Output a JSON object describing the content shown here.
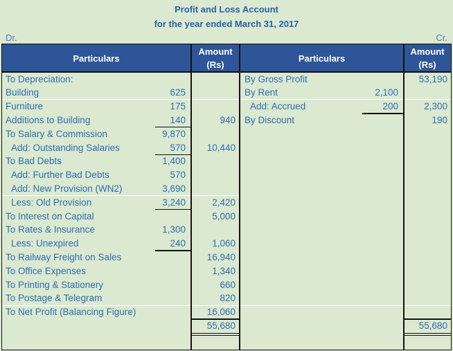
{
  "title": {
    "line1": "Profit and Loss Account",
    "line2": "for the year ended March 31, 2017"
  },
  "side_labels": {
    "debit": "Dr.",
    "credit": "Cr."
  },
  "header": {
    "dr_particulars": "Particulars",
    "dr_amount_line1": "Amount",
    "dr_amount_line2": "(Rs)",
    "cr_particulars": "Particulars",
    "cr_amount_line1": "Amount",
    "cr_amount_line2": "(Rs)"
  },
  "debit": [
    {
      "label": "To Depreciation:",
      "sub": "",
      "amount": "",
      "indent": 0
    },
    {
      "label": "Building",
      "sub": "625",
      "amount": "",
      "indent": 0
    },
    {
      "label": "Furniture",
      "sub": "175",
      "amount": "",
      "indent": 0
    },
    {
      "label": "Additions to Building",
      "sub": "140",
      "amount": "940",
      "indent": 0
    },
    {
      "label": "To Salary & Commission",
      "sub": "9,870",
      "amount": "",
      "indent": 0
    },
    {
      "label": "Add: Outstanding Salaries",
      "sub": "570",
      "amount": "10,440",
      "indent": 1
    },
    {
      "label": "To Bad Debts",
      "sub": "1,400",
      "amount": "",
      "indent": 0
    },
    {
      "label": "Add: Further Bad Debts",
      "sub": "570",
      "amount": "",
      "indent": 1
    },
    {
      "label": "Add: New Provision (WN2)",
      "sub": "3,690",
      "amount": "",
      "indent": 1
    },
    {
      "label": "Less: Old Provision",
      "sub": "3,240",
      "amount": "2,420",
      "indent": 1
    },
    {
      "label": "To Interest on Capital",
      "sub": "",
      "amount": "5,000",
      "indent": 0
    },
    {
      "label": "To Rates & Insurance",
      "sub": "1,300",
      "amount": "",
      "indent": 0
    },
    {
      "label": "Less: Unexpired",
      "sub": "240",
      "amount": "1,060",
      "indent": 1
    },
    {
      "label": "To Railway Freight on Sales",
      "sub": "",
      "amount": "16,940",
      "indent": 0
    },
    {
      "label": "To Office Expenses",
      "sub": "",
      "amount": "1,340",
      "indent": 0
    },
    {
      "label": "To Printing & Stationery",
      "sub": "",
      "amount": "660",
      "indent": 0
    },
    {
      "label": "To Postage & Telegram",
      "sub": "",
      "amount": "820",
      "indent": 0
    },
    {
      "label": "To Net Profit (Balancing Figure)",
      "sub": "",
      "amount": "16,060",
      "indent": 0
    }
  ],
  "credit": [
    {
      "label": "By Gross Profit",
      "sub": "",
      "amount": "53,190",
      "indent": 0
    },
    {
      "label": "By Rent",
      "sub": "2,100",
      "amount": "",
      "indent": 0
    },
    {
      "label": "Add: Accrued",
      "sub": "200",
      "amount": "2,300",
      "indent": 1
    },
    {
      "label": "By Discount",
      "sub": "",
      "amount": "190",
      "indent": 0
    }
  ],
  "totals": {
    "debit": "55,680",
    "credit": "55,680"
  },
  "colors": {
    "background": "#dbe9d0",
    "header_bg": "#2e5597",
    "text": "#2e6fb0"
  }
}
